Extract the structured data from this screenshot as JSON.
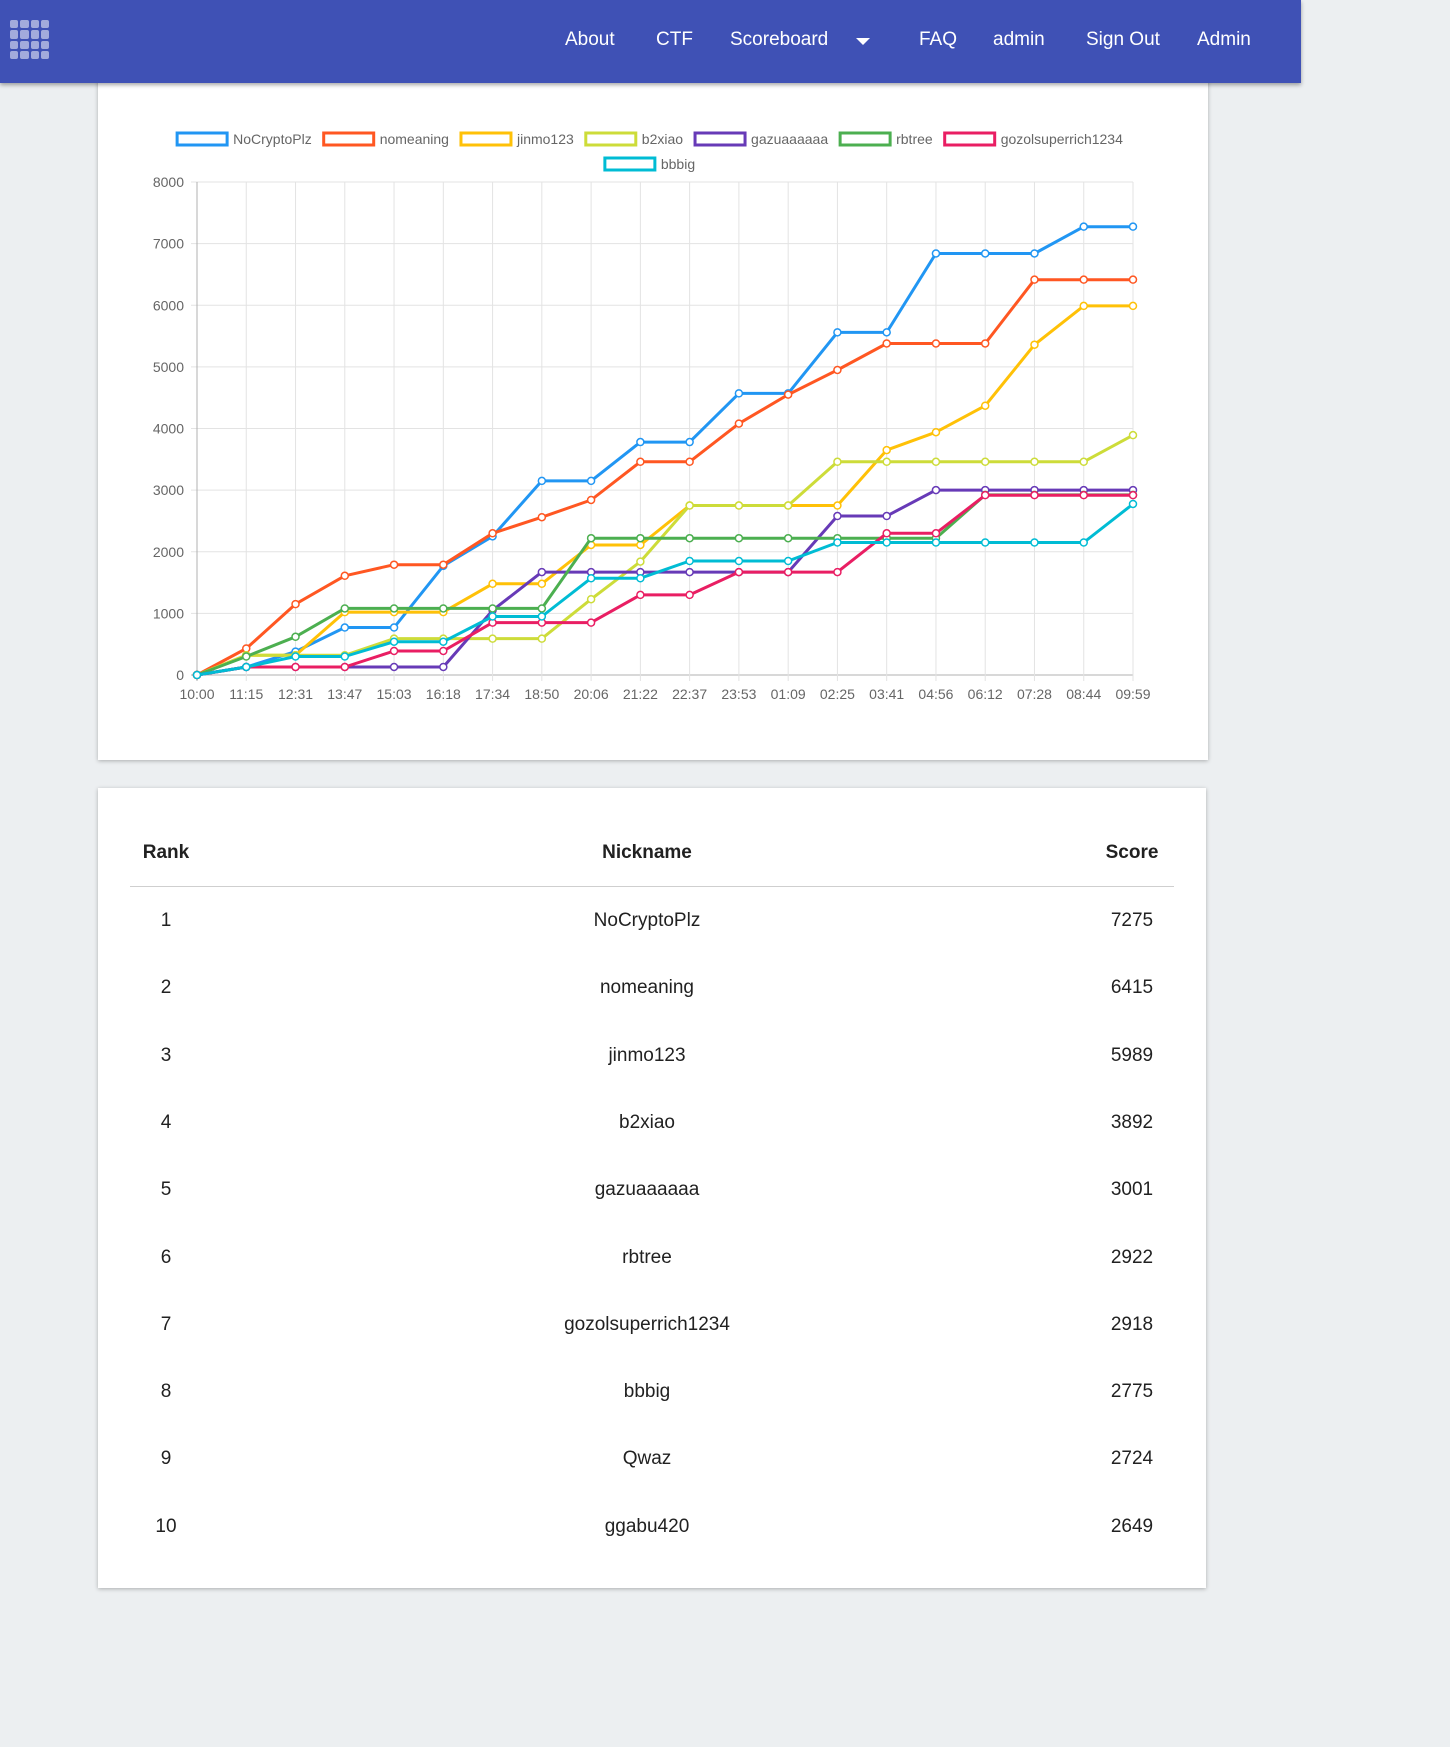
{
  "header": {
    "nav": [
      {
        "label": "About",
        "name": "nav-about"
      },
      {
        "label": "CTF",
        "name": "nav-ctf"
      },
      {
        "label": "Scoreboard",
        "name": "nav-scoreboard"
      },
      {
        "label": "FAQ",
        "name": "nav-faq"
      },
      {
        "label": "admin",
        "name": "nav-admin-user"
      },
      {
        "label": "Sign Out",
        "name": "nav-sign-out"
      },
      {
        "label": "Admin",
        "name": "nav-admin"
      }
    ],
    "icons": {
      "logo": "grid-logo-icon",
      "dropdown": "caret-down-icon"
    }
  },
  "colors": {
    "header_bg": "#3f51b5",
    "page_bg": "#eceff1"
  },
  "chart_data": {
    "type": "line",
    "title": "",
    "xlabel": "",
    "ylabel": "",
    "ylim": [
      0,
      8000
    ],
    "yticks": [
      0,
      1000,
      2000,
      3000,
      4000,
      5000,
      6000,
      7000,
      8000
    ],
    "categories": [
      "10:00",
      "11:15",
      "12:31",
      "13:47",
      "15:03",
      "16:18",
      "17:34",
      "18:50",
      "20:06",
      "21:22",
      "22:37",
      "23:53",
      "01:09",
      "02:25",
      "03:41",
      "04:56",
      "06:12",
      "07:28",
      "08:44",
      "09:59"
    ],
    "legend_position": "top",
    "grid": true,
    "series": [
      {
        "name": "NoCryptoPlz",
        "color": "#2196f3",
        "values": [
          0,
          130,
          380,
          770,
          770,
          1770,
          2250,
          3150,
          3150,
          3780,
          3780,
          4570,
          4570,
          5560,
          5560,
          6840,
          6840,
          6840,
          7275,
          7275
        ]
      },
      {
        "name": "nomeaning",
        "color": "#ff5722",
        "values": [
          0,
          430,
          1150,
          1610,
          1790,
          1790,
          2300,
          2560,
          2840,
          3460,
          3460,
          4080,
          4550,
          4950,
          5380,
          5380,
          5380,
          6415,
          6415,
          6415
        ]
      },
      {
        "name": "jinmo123",
        "color": "#ffc107",
        "values": [
          0,
          320,
          320,
          1020,
          1020,
          1020,
          1480,
          1480,
          2110,
          2110,
          2750,
          2750,
          2750,
          2750,
          3650,
          3940,
          4370,
          5360,
          5989,
          5989
        ]
      },
      {
        "name": "b2xiao",
        "color": "#cddc39",
        "values": [
          0,
          320,
          320,
          320,
          590,
          590,
          590,
          590,
          1230,
          1840,
          2750,
          2750,
          2750,
          3460,
          3460,
          3460,
          3460,
          3460,
          3460,
          3892
        ]
      },
      {
        "name": "gazuaaaaaa",
        "color": "#673ab7",
        "values": [
          0,
          130,
          130,
          130,
          130,
          130,
          1050,
          1670,
          1670,
          1670,
          1670,
          1670,
          1670,
          2580,
          2580,
          3001,
          3001,
          3001,
          3001,
          3001
        ]
      },
      {
        "name": "rbtree",
        "color": "#4caf50",
        "values": [
          0,
          300,
          620,
          1080,
          1080,
          1080,
          1080,
          1080,
          2220,
          2220,
          2220,
          2220,
          2220,
          2220,
          2220,
          2220,
          2922,
          2922,
          2922,
          2922
        ]
      },
      {
        "name": "gozolsuperrich1234",
        "color": "#e91e63",
        "values": [
          0,
          130,
          130,
          130,
          390,
          390,
          850,
          850,
          850,
          1300,
          1300,
          1670,
          1670,
          1670,
          2300,
          2300,
          2918,
          2918,
          2918,
          2918
        ]
      },
      {
        "name": "bbbig",
        "color": "#00bcd4",
        "values": [
          0,
          130,
          300,
          300,
          540,
          540,
          950,
          950,
          1570,
          1570,
          1850,
          1850,
          1850,
          2150,
          2150,
          2150,
          2150,
          2150,
          2150,
          2775
        ]
      }
    ]
  },
  "table": {
    "headers": {
      "rank": "Rank",
      "nickname": "Nickname",
      "score": "Score"
    },
    "rows": [
      {
        "rank": "1",
        "nickname": "NoCryptoPlz",
        "score": "7275"
      },
      {
        "rank": "2",
        "nickname": "nomeaning",
        "score": "6415"
      },
      {
        "rank": "3",
        "nickname": "jinmo123",
        "score": "5989"
      },
      {
        "rank": "4",
        "nickname": "b2xiao",
        "score": "3892"
      },
      {
        "rank": "5",
        "nickname": "gazuaaaaaa",
        "score": "3001"
      },
      {
        "rank": "6",
        "nickname": "rbtree",
        "score": "2922"
      },
      {
        "rank": "7",
        "nickname": "gozolsuperrich1234",
        "score": "2918"
      },
      {
        "rank": "8",
        "nickname": "bbbig",
        "score": "2775"
      },
      {
        "rank": "9",
        "nickname": "Qwaz",
        "score": "2724"
      },
      {
        "rank": "10",
        "nickname": "ggabu420",
        "score": "2649"
      }
    ]
  }
}
